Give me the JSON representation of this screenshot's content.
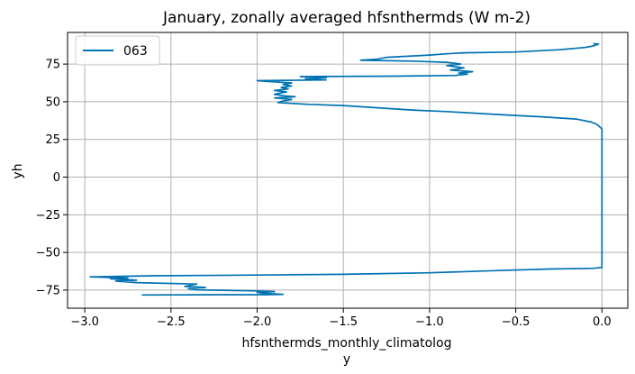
{
  "chart_data": {
    "type": "line",
    "title": "January, zonally averaged hfsnthermds (W m-2)",
    "xlabel_line1": "hfsnthermds_monthly_climatolog",
    "xlabel_line2": "y",
    "ylabel": "yh",
    "xlim": [
      -3.1,
      0.15
    ],
    "ylim": [
      -87,
      96
    ],
    "xticks": [
      -3.0,
      -2.5,
      -2.0,
      -1.5,
      -1.0,
      -0.5,
      0.0
    ],
    "xtick_labels": [
      "−3.0",
      "−2.5",
      "−2.0",
      "−1.5",
      "−1.0",
      "−0.5",
      "0.0"
    ],
    "yticks": [
      -75,
      -50,
      -25,
      0,
      25,
      50,
      75
    ],
    "ytick_labels": [
      "−75",
      "−50",
      "−25",
      "0",
      "25",
      "50",
      "75"
    ],
    "grid": true,
    "legend_position": "top-left",
    "series": [
      {
        "name": "063",
        "color": "#0072b2",
        "points": [
          [
            -2.67,
            -78.2
          ],
          [
            -2.2,
            -78.0
          ],
          [
            -1.95,
            -78.0
          ],
          [
            -1.85,
            -77.8
          ],
          [
            -1.95,
            -77.2
          ],
          [
            -2.0,
            -76.5
          ],
          [
            -1.9,
            -76.0
          ],
          [
            -2.0,
            -75.5
          ],
          [
            -2.35,
            -74.8
          ],
          [
            -2.4,
            -74.0
          ],
          [
            -2.3,
            -73.2
          ],
          [
            -2.42,
            -72.5
          ],
          [
            -2.35,
            -71.0
          ],
          [
            -2.7,
            -70.0
          ],
          [
            -2.82,
            -69.0
          ],
          [
            -2.7,
            -68.4
          ],
          [
            -2.85,
            -67.5
          ],
          [
            -2.75,
            -67.0
          ],
          [
            -2.97,
            -66.2
          ],
          [
            -2.6,
            -65.5
          ],
          [
            -2.0,
            -65.0
          ],
          [
            -1.5,
            -64.5
          ],
          [
            -1.0,
            -63.5
          ],
          [
            -0.6,
            -62.0
          ],
          [
            -0.3,
            -61.0
          ],
          [
            -0.05,
            -60.5
          ],
          [
            0.0,
            -60.0
          ],
          [
            0.0,
            -50.0
          ],
          [
            0.0,
            -25.0
          ],
          [
            0.0,
            0.0
          ],
          [
            0.0,
            25.0
          ],
          [
            0.0,
            32.0
          ],
          [
            -0.03,
            35.0
          ],
          [
            -0.06,
            36.5
          ],
          [
            -0.15,
            38.5
          ],
          [
            -0.35,
            40.0
          ],
          [
            -0.6,
            41.5
          ],
          [
            -0.9,
            43.5
          ],
          [
            -1.1,
            44.5
          ],
          [
            -1.3,
            46.0
          ],
          [
            -1.5,
            47.5
          ],
          [
            -1.7,
            48.3
          ],
          [
            -1.88,
            49.5
          ],
          [
            -1.85,
            50.5
          ],
          [
            -1.8,
            51.5
          ],
          [
            -1.9,
            52.5
          ],
          [
            -1.78,
            53.3
          ],
          [
            -1.85,
            54.0
          ],
          [
            -1.9,
            55.0
          ],
          [
            -1.83,
            56.5
          ],
          [
            -1.9,
            57.5
          ],
          [
            -1.82,
            58.5
          ],
          [
            -1.86,
            59.5
          ],
          [
            -1.8,
            60.5
          ],
          [
            -1.85,
            61.5
          ],
          [
            -1.8,
            62.5
          ],
          [
            -1.95,
            63.5
          ],
          [
            -2.0,
            64.0
          ],
          [
            -1.6,
            64.5
          ],
          [
            -1.72,
            65.3
          ],
          [
            -1.6,
            66.0
          ],
          [
            -1.75,
            66.7
          ],
          [
            -1.2,
            67.0
          ],
          [
            -0.85,
            67.5
          ],
          [
            -0.78,
            68.3
          ],
          [
            -0.83,
            69.0
          ],
          [
            -0.75,
            70.0
          ],
          [
            -0.88,
            71.0
          ],
          [
            -0.8,
            72.5
          ],
          [
            -0.9,
            74.0
          ],
          [
            -0.82,
            75.0
          ],
          [
            -0.9,
            76.2
          ],
          [
            -1.1,
            77.0
          ],
          [
            -1.4,
            77.5
          ],
          [
            -1.3,
            78.3
          ],
          [
            -1.25,
            79.5
          ],
          [
            -1.0,
            81.0
          ],
          [
            -0.9,
            81.8
          ],
          [
            -0.8,
            82.5
          ],
          [
            -0.5,
            83.0
          ],
          [
            -0.25,
            84.5
          ],
          [
            -0.1,
            86.0
          ],
          [
            -0.05,
            87.0
          ],
          [
            -0.02,
            88.2
          ],
          [
            -0.05,
            88.6
          ]
        ]
      }
    ]
  },
  "colors": {
    "line": "#0072b2",
    "grid": "#b0b0b0",
    "axis": "#000000"
  }
}
